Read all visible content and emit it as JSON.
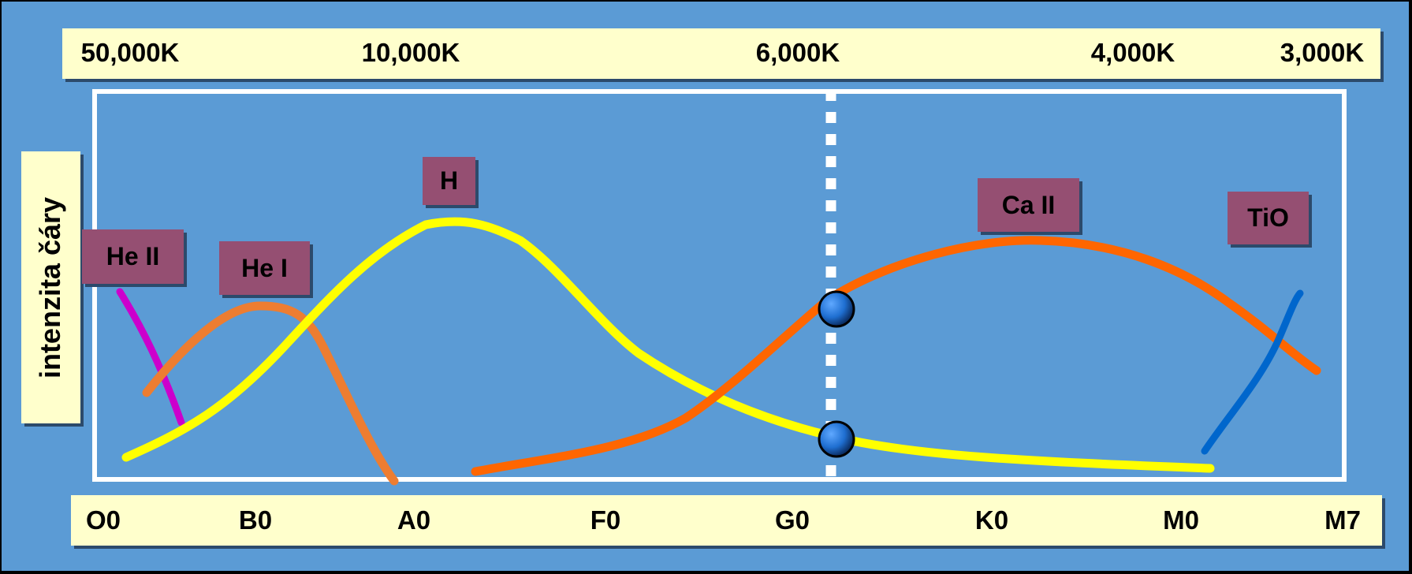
{
  "temperature_labels": [
    "50,000K",
    "10,000K",
    "6,000K",
    "4,000K",
    "3,000K"
  ],
  "spectral_classes": [
    "O0",
    "B0",
    "A0",
    "F0",
    "G0",
    "K0",
    "M0",
    "M7"
  ],
  "y_axis_label": "intenzita čáry",
  "line_tags": {
    "he2": "He II",
    "he1": "He I",
    "h": "H",
    "ca2": "Ca II",
    "tio": "TiO"
  },
  "colors": {
    "background": "#5b9bd5",
    "band": "#ffffcc",
    "tag": "#954f72",
    "he2": "#cc00cc",
    "he1": "#ed7d31",
    "h": "#ffff00",
    "ca2": "#ff6600",
    "tio": "#0066cc",
    "marker": "#1f6fd1"
  },
  "curves": [
    {
      "name": "He II",
      "color_key": "he2",
      "x": [
        "O0",
        "B0"
      ],
      "shape": "falling"
    },
    {
      "name": "He I",
      "color_key": "he1",
      "x": [
        "O0",
        "A0"
      ],
      "peak": "B0"
    },
    {
      "name": "H",
      "color_key": "h",
      "x": [
        "O0",
        "M0"
      ],
      "peak": "A0"
    },
    {
      "name": "Ca II",
      "color_key": "ca2",
      "x": [
        "A0",
        "M7"
      ],
      "peak": "K0"
    },
    {
      "name": "TiO",
      "color_key": "tio",
      "x": [
        "M0",
        "M7"
      ],
      "shape": "rising"
    }
  ],
  "marker_class": "G0"
}
